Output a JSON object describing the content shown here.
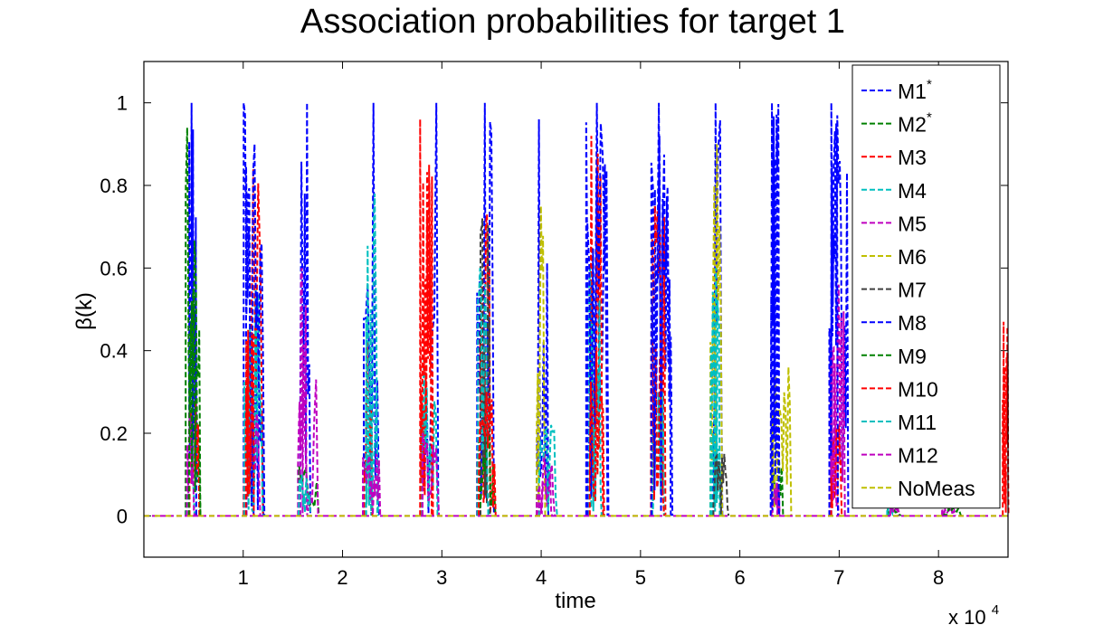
{
  "chart_data": {
    "type": "line",
    "title": "Association probabilities for target 1",
    "xlabel": "time",
    "ylabel": "β(k)",
    "x_multiplier_label": "x 10",
    "x_multiplier_exponent": "4",
    "xlim": [
      0,
      8.7
    ],
    "ylim": [
      -0.1,
      1.1
    ],
    "xticks": [
      1,
      2,
      3,
      4,
      5,
      6,
      7,
      8
    ],
    "yticks": [
      0,
      0.2,
      0.4,
      0.6,
      0.8,
      1
    ],
    "ytick_labels": [
      "0",
      "0.2",
      "0.4",
      "0.6",
      "0.8",
      "1"
    ],
    "legend_position": "top-right",
    "line_style": "dashed",
    "series": [
      {
        "name": "M1",
        "superscript": "*",
        "color": "#0000ff"
      },
      {
        "name": "M2",
        "superscript": "*",
        "color": "#008000"
      },
      {
        "name": "M3",
        "color": "#ff0000"
      },
      {
        "name": "M4",
        "color": "#00bfbf"
      },
      {
        "name": "M5",
        "color": "#bf00bf"
      },
      {
        "name": "M6",
        "color": "#bfbf00"
      },
      {
        "name": "M7",
        "color": "#404040"
      },
      {
        "name": "M8",
        "color": "#0000ff"
      },
      {
        "name": "M9",
        "color": "#008000"
      },
      {
        "name": "M10",
        "color": "#ff0000"
      },
      {
        "name": "M11",
        "color": "#00bfbf"
      },
      {
        "name": "M12",
        "color": "#bf00bf"
      },
      {
        "name": "NoMeas",
        "color": "#bfbf00"
      }
    ],
    "bursts": [
      {
        "x_start": 0.42,
        "x_end": 0.58,
        "peaks": {
          "M1": 1.0,
          "M2": 0.94,
          "M3": 0.28,
          "M4": 0.12,
          "M5": 0.25,
          "M9": 0.55
        }
      },
      {
        "x_start": 1.0,
        "x_end": 1.2,
        "peaks": {
          "M1": 1.0,
          "M3": 0.84,
          "M4": 0.55,
          "M5": 0.27,
          "M8": 0.9,
          "M10": 0.45
        }
      },
      {
        "x_start": 1.55,
        "x_end": 1.75,
        "peaks": {
          "M1": 1.0,
          "M5": 0.6,
          "M2": 0.12,
          "M12": 0.33,
          "M4": 0.1
        }
      },
      {
        "x_start": 2.2,
        "x_end": 2.38,
        "peaks": {
          "M1": 1.0,
          "M4": 0.78,
          "M3": 0.42,
          "M11": 0.5,
          "M5": 0.15
        }
      },
      {
        "x_start": 2.78,
        "x_end": 2.98,
        "peaks": {
          "M1": 1.0,
          "M3": 0.96,
          "M4": 0.38,
          "M10": 0.85,
          "M5": 0.2
        }
      },
      {
        "x_start": 3.35,
        "x_end": 3.55,
        "peaks": {
          "M1": 1.0,
          "M3": 0.73,
          "M7": 0.72,
          "M2": 0.2,
          "M11": 0.6,
          "M10": 0.3
        }
      },
      {
        "x_start": 3.95,
        "x_end": 4.15,
        "peaks": {
          "M1": 0.96,
          "M6": 0.75,
          "M5": 0.15,
          "M4": 0.22,
          "M12": 0.1
        }
      },
      {
        "x_start": 4.45,
        "x_end": 4.7,
        "peaks": {
          "M1": 1.0,
          "M3": 0.92,
          "M4": 0.6,
          "M8": 0.95,
          "M10": 0.4
        }
      },
      {
        "x_start": 5.1,
        "x_end": 5.32,
        "peaks": {
          "M1": 1.0,
          "M3": 0.75,
          "M4": 0.3,
          "M10": 0.42,
          "M8": 0.92
        }
      },
      {
        "x_start": 5.7,
        "x_end": 5.88,
        "peaks": {
          "M1": 1.0,
          "M6": 0.9,
          "M4": 0.6,
          "M11": 0.2,
          "M7": 0.15
        }
      },
      {
        "x_start": 6.28,
        "x_end": 6.48,
        "peaks": {
          "M1": 1.0,
          "M2": 0.13,
          "M6": 0.36,
          "M5": 0.08,
          "M8": 0.97
        }
      },
      {
        "x_start": 6.9,
        "x_end": 7.08,
        "peaks": {
          "M1": 1.0,
          "M5": 0.56,
          "M3": 0.22,
          "M12": 0.4,
          "M8": 0.95
        }
      },
      {
        "x_start": 7.48,
        "x_end": 7.62,
        "peaks": {
          "M2": 0.02,
          "M4": 0.02,
          "M5": 0.02
        }
      },
      {
        "x_start": 8.02,
        "x_end": 8.2,
        "peaks": {
          "M5": 0.02,
          "M2": 0.02
        }
      },
      {
        "x_start": 8.62,
        "x_end": 8.68,
        "peaks": {
          "M3": 0.47
        }
      }
    ]
  }
}
